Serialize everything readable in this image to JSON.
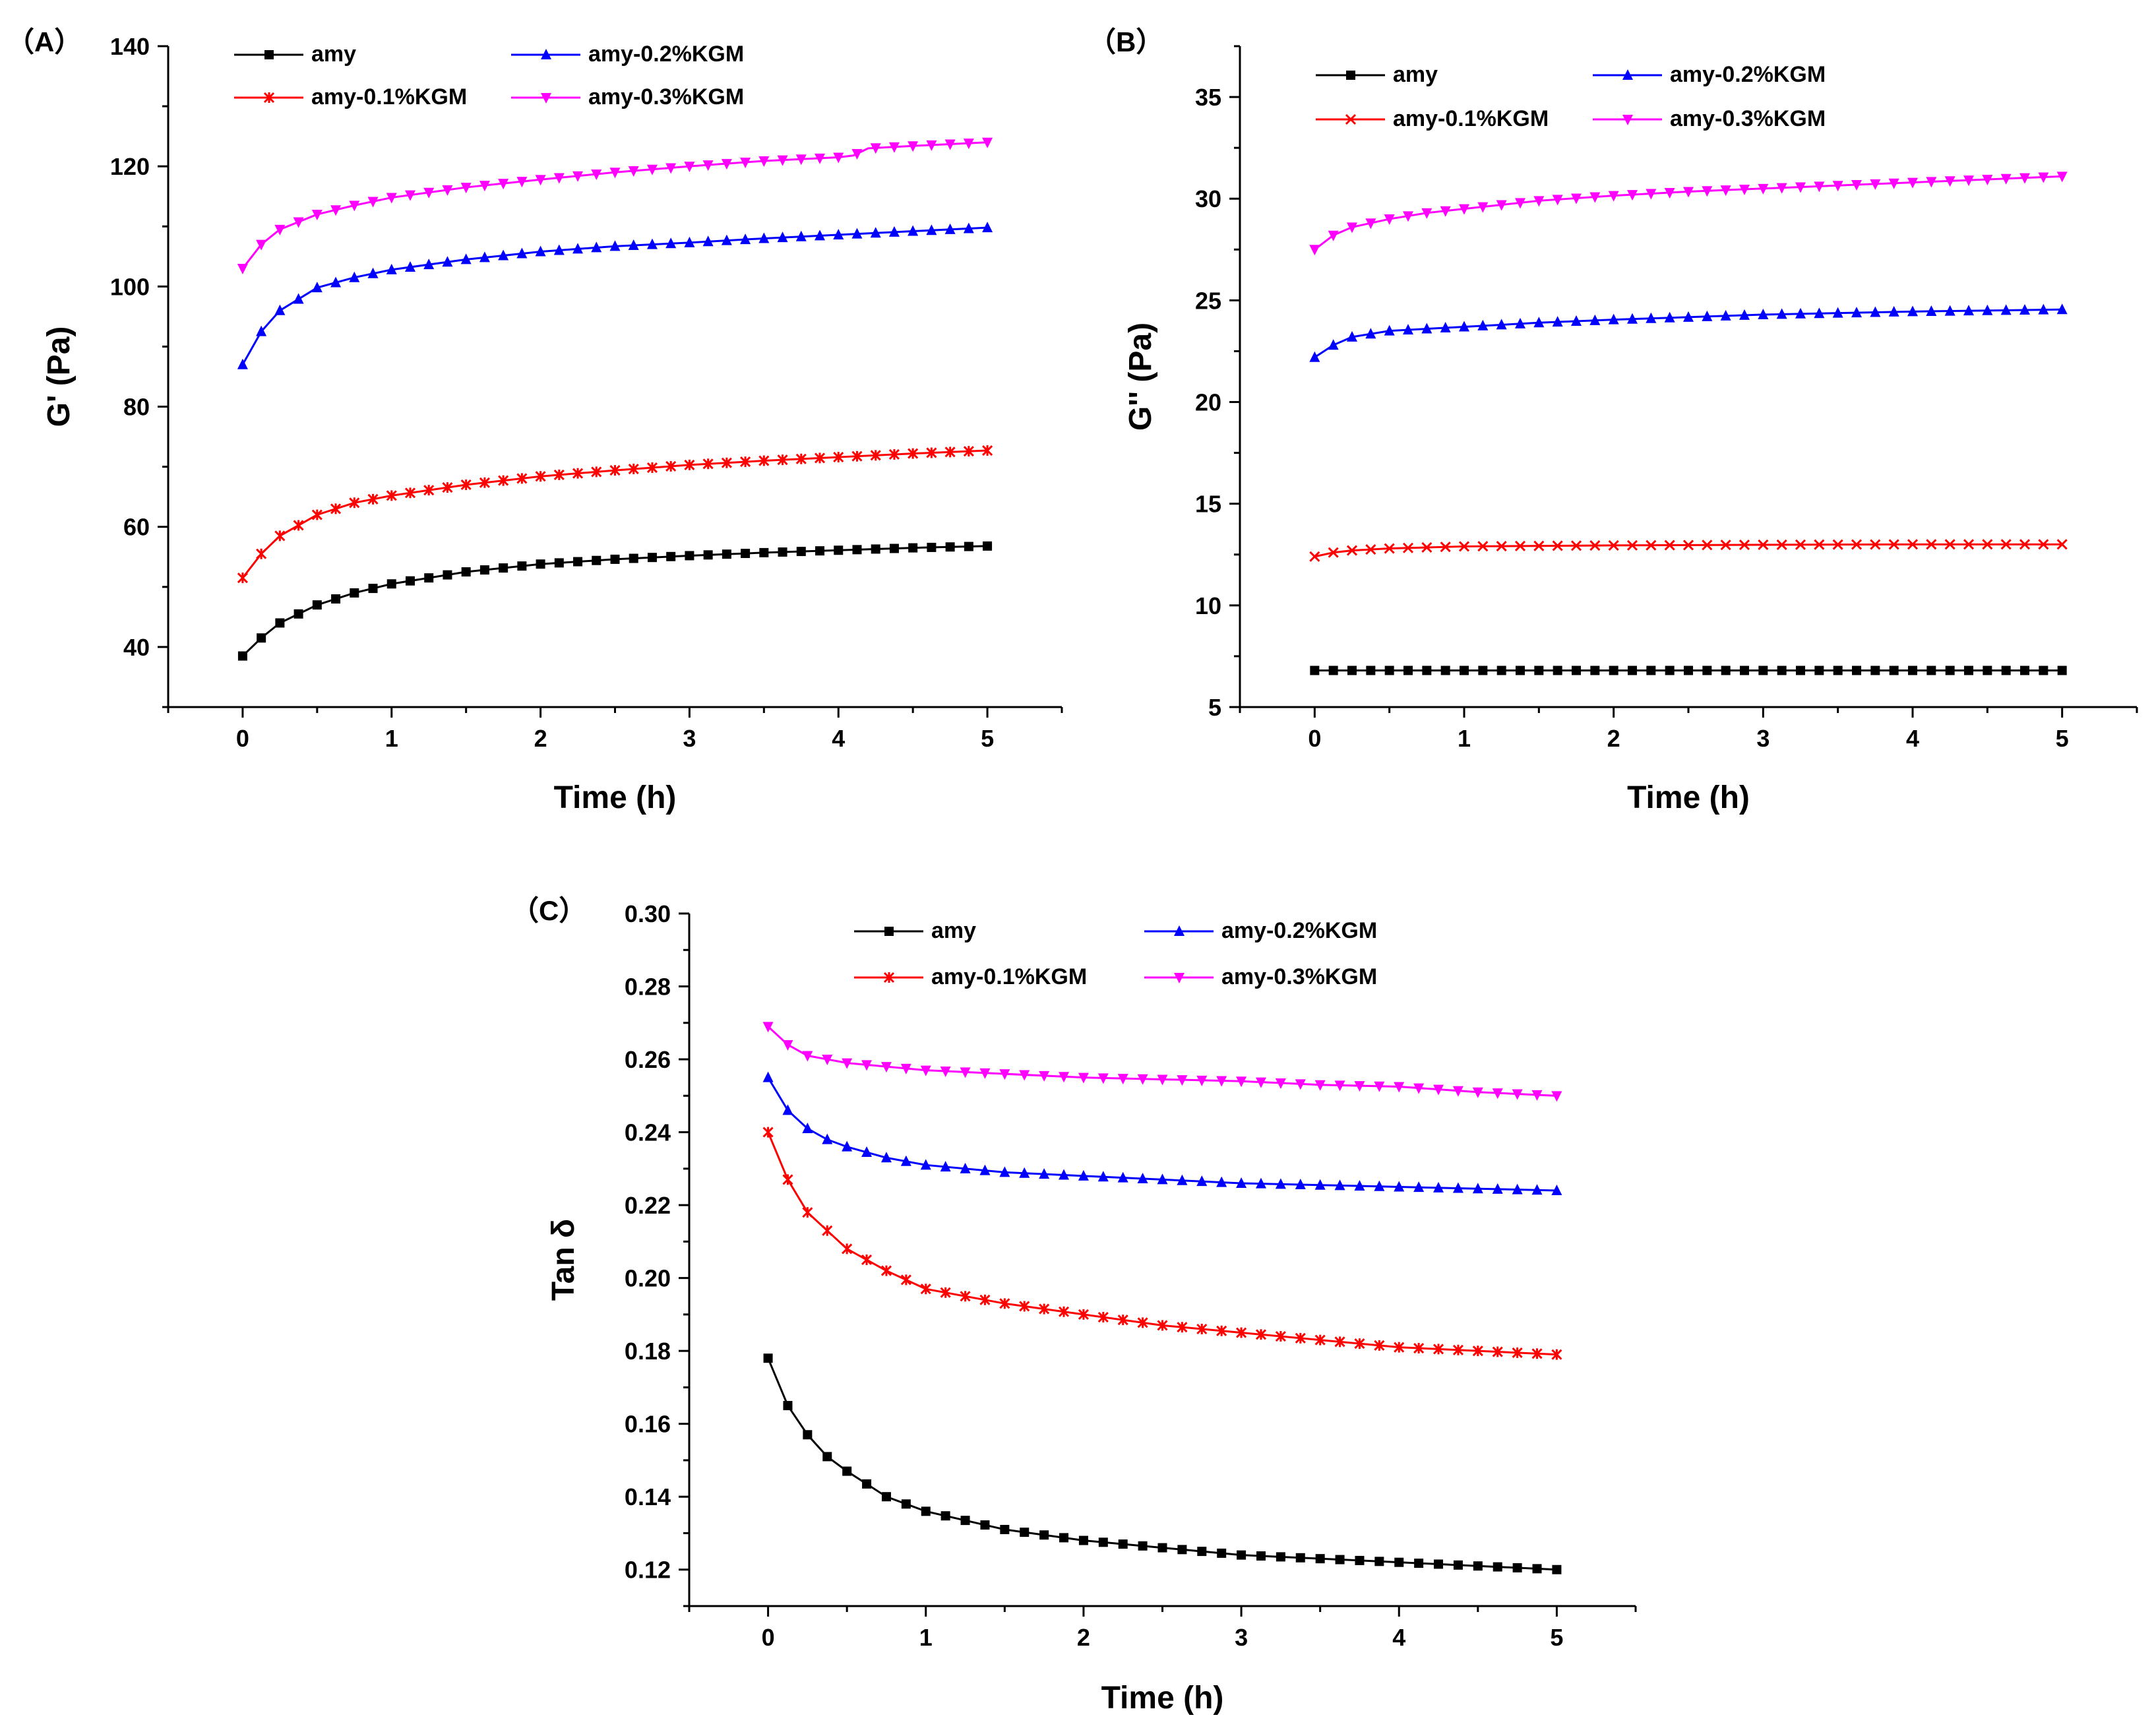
{
  "colors": {
    "amy": "#000000",
    "amy01": "#ff0000",
    "amy02": "#0000ff",
    "amy03": "#ff00ff"
  },
  "chart_data": [
    {
      "type": "line",
      "panel_label": "（A）",
      "xlabel": "Time (h)",
      "ylabel": "G' (Pa)",
      "xlim": [
        -0.5,
        5.5
      ],
      "ylim": [
        30,
        140
      ],
      "xticks": [
        0,
        1,
        2,
        3,
        4,
        5
      ],
      "yticks": [
        40,
        60,
        80,
        100,
        120,
        140
      ],
      "grid": false,
      "legend": "top",
      "series": [
        {
          "name": "amy",
          "marker": "square",
          "color": "#000000",
          "x": [
            0,
            0.125,
            0.25,
            0.5,
            0.75,
            1,
            1.5,
            2,
            2.5,
            3,
            3.5,
            4,
            4.5,
            5
          ],
          "y": [
            38.5,
            41.5,
            44,
            47,
            49,
            50.5,
            52.5,
            53.8,
            54.6,
            55.2,
            55.7,
            56.1,
            56.5,
            56.8
          ]
        },
        {
          "name": "amy-0.1%KGM",
          "marker": "star",
          "color": "#ff0000",
          "x": [
            0,
            0.125,
            0.25,
            0.5,
            0.75,
            1,
            1.5,
            2,
            2.5,
            3,
            3.5,
            4,
            4.5,
            5
          ],
          "y": [
            51.5,
            55.5,
            58.5,
            62,
            64,
            65.2,
            67,
            68.4,
            69.4,
            70.3,
            71,
            71.6,
            72.2,
            72.7
          ]
        },
        {
          "name": "amy-0.2%KGM",
          "marker": "triangle-up",
          "color": "#0000ff",
          "x": [
            0,
            0.125,
            0.25,
            0.5,
            0.75,
            1,
            1.5,
            2,
            2.5,
            3,
            3.5,
            4,
            4.5,
            5
          ],
          "y": [
            87,
            92.5,
            96,
            99.8,
            101.5,
            102.8,
            104.5,
            105.8,
            106.7,
            107.3,
            108,
            108.6,
            109.2,
            109.8
          ]
        },
        {
          "name": "amy-0.3%KGM",
          "marker": "triangle-down",
          "color": "#ff00ff",
          "x": [
            0,
            0.125,
            0.25,
            0.5,
            0.75,
            1,
            1.5,
            2,
            2.5,
            3,
            3.5,
            4,
            4.1,
            4.2,
            4.5,
            5
          ],
          "y": [
            103,
            107,
            109.5,
            112,
            113.5,
            114.8,
            116.5,
            117.8,
            119,
            120,
            120.9,
            121.5,
            121.8,
            123,
            123.4,
            124
          ]
        }
      ]
    },
    {
      "type": "line",
      "panel_label": "（B）",
      "xlabel": "Time (h)",
      "ylabel": "G'' (Pa)",
      "xlim": [
        -0.5,
        5.5
      ],
      "ylim": [
        5,
        37.5
      ],
      "xticks": [
        0,
        1,
        2,
        3,
        4,
        5
      ],
      "yticks": [
        5,
        10,
        15,
        20,
        25,
        30,
        35
      ],
      "grid": false,
      "legend": "top",
      "series": [
        {
          "name": "amy",
          "marker": "square",
          "color": "#000000",
          "x": [
            0,
            1,
            2,
            3,
            4,
            5
          ],
          "y": [
            6.8,
            6.8,
            6.8,
            6.8,
            6.8,
            6.8
          ]
        },
        {
          "name": "amy-0.1%KGM",
          "marker": "cross",
          "color": "#ff0000",
          "x": [
            0,
            0.125,
            0.25,
            0.5,
            1,
            2,
            3,
            4,
            5
          ],
          "y": [
            12.4,
            12.6,
            12.7,
            12.8,
            12.9,
            12.95,
            12.98,
            13,
            13
          ]
        },
        {
          "name": "amy-0.2%KGM",
          "marker": "triangle-up",
          "color": "#0000ff",
          "x": [
            0,
            0.125,
            0.25,
            0.5,
            0.75,
            1,
            1.5,
            2,
            3,
            4,
            5
          ],
          "y": [
            22.2,
            22.8,
            23.2,
            23.5,
            23.6,
            23.7,
            23.9,
            24.05,
            24.3,
            24.45,
            24.55
          ]
        },
        {
          "name": "amy-0.3%KGM",
          "marker": "triangle-down",
          "color": "#ff00ff",
          "x": [
            0,
            0.125,
            0.25,
            0.5,
            0.75,
            1,
            1.5,
            2,
            2.5,
            3,
            3.5,
            4,
            4.5,
            5
          ],
          "y": [
            27.5,
            28.2,
            28.6,
            29,
            29.3,
            29.5,
            29.9,
            30.15,
            30.35,
            30.5,
            30.65,
            30.8,
            30.95,
            31.1
          ]
        }
      ]
    },
    {
      "type": "line",
      "panel_label": "（C）",
      "xlabel": "Time (h)",
      "ylabel": "Tan δ",
      "xlim": [
        -0.5,
        5.5
      ],
      "ylim": [
        0.11,
        0.3
      ],
      "xticks": [
        0,
        1,
        2,
        3,
        4,
        5
      ],
      "yticks": [
        0.12,
        0.14,
        0.16,
        0.18,
        0.2,
        0.22,
        0.24,
        0.26,
        0.28,
        0.3
      ],
      "grid": false,
      "legend": "top",
      "series": [
        {
          "name": "amy",
          "marker": "square",
          "color": "#000000",
          "x": [
            0,
            0.125,
            0.25,
            0.375,
            0.5,
            0.75,
            1,
            1.5,
            2,
            2.5,
            3,
            3.5,
            4,
            4.5,
            5
          ],
          "y": [
            0.178,
            0.165,
            0.157,
            0.151,
            0.147,
            0.14,
            0.136,
            0.131,
            0.128,
            0.126,
            0.124,
            0.123,
            0.122,
            0.121,
            0.12
          ]
        },
        {
          "name": "amy-0.1%KGM",
          "marker": "star",
          "color": "#ff0000",
          "x": [
            0,
            0.125,
            0.25,
            0.375,
            0.5,
            0.75,
            1,
            1.5,
            2,
            2.5,
            3,
            3.5,
            4,
            4.5,
            5
          ],
          "y": [
            0.24,
            0.227,
            0.218,
            0.213,
            0.208,
            0.202,
            0.197,
            0.193,
            0.19,
            0.187,
            0.185,
            0.183,
            0.181,
            0.18,
            0.179
          ]
        },
        {
          "name": "amy-0.2%KGM",
          "marker": "triangle-up",
          "color": "#0000ff",
          "x": [
            0,
            0.125,
            0.25,
            0.375,
            0.5,
            0.75,
            1,
            1.5,
            2,
            2.5,
            3,
            3.5,
            4,
            4.5,
            5
          ],
          "y": [
            0.255,
            0.246,
            0.241,
            0.238,
            0.236,
            0.233,
            0.231,
            0.229,
            0.228,
            0.227,
            0.226,
            0.2255,
            0.225,
            0.2245,
            0.224
          ]
        },
        {
          "name": "amy-0.3%KGM",
          "marker": "triangle-down",
          "color": "#ff00ff",
          "x": [
            0,
            0.125,
            0.25,
            0.375,
            0.5,
            0.75,
            1,
            1.5,
            2,
            2.5,
            3,
            3.5,
            4,
            4.5,
            5
          ],
          "y": [
            0.269,
            0.264,
            0.261,
            0.26,
            0.259,
            0.258,
            0.257,
            0.256,
            0.255,
            0.2545,
            0.254,
            0.253,
            0.2525,
            0.251,
            0.25
          ]
        }
      ]
    }
  ]
}
